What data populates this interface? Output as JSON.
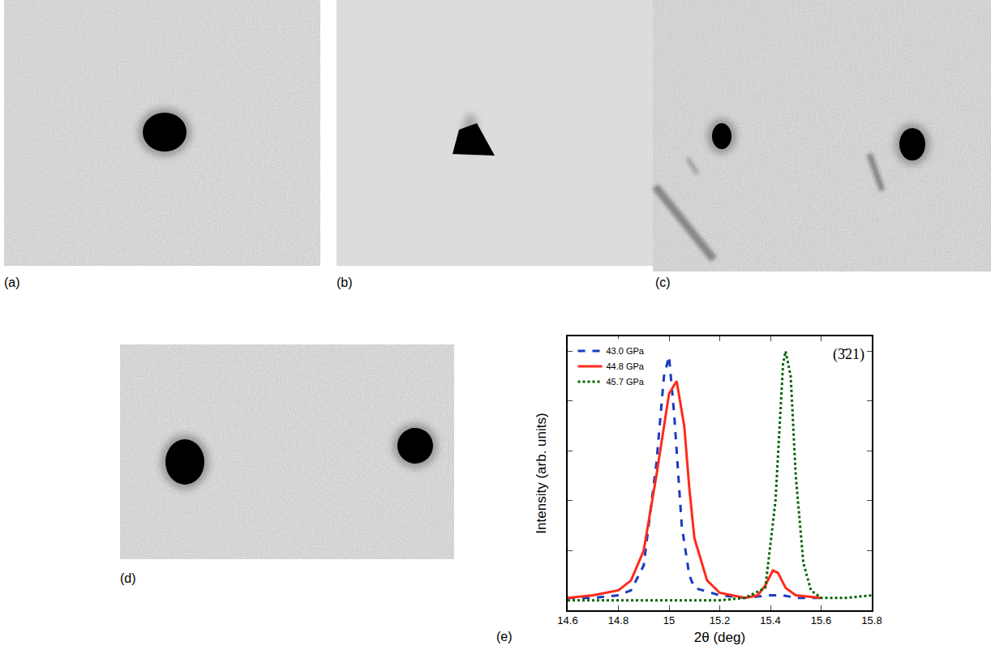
{
  "images": [
    {
      "label": "(a)"
    },
    {
      "label": "(b)"
    },
    {
      "label": "(c)"
    },
    {
      "label": "(d)"
    }
  ],
  "chart_data": {
    "type": "line",
    "panel_label": "(e)",
    "x_label": "2θ (deg)",
    "y_label": "Intensity (arb. units)",
    "annotations": [
      {
        "text": "(3̄21)"
      }
    ],
    "xlim": [
      14.6,
      15.8
    ],
    "xticks": [
      14.6,
      14.8,
      15,
      15.2,
      15.4,
      15.6,
      15.8
    ],
    "ylim": [
      -0.04,
      1.06
    ],
    "yticks": [
      0.2,
      0.4,
      0.6,
      0.8,
      1.0
    ],
    "tick_labels": "x",
    "grid": false,
    "legend": "top-left",
    "series": [
      {
        "name": "43.0 GPa",
        "color": "#1a3bbf",
        "line_style": "dashed",
        "x": [
          14.6,
          14.7,
          14.8,
          14.85,
          14.9,
          14.95,
          14.98,
          15.0,
          15.02,
          15.05,
          15.08,
          15.1,
          15.2,
          15.3,
          15.4,
          15.45,
          15.5,
          15.6
        ],
        "values": [
          0.01,
          0.01,
          0.02,
          0.04,
          0.14,
          0.55,
          0.9,
          0.98,
          0.75,
          0.3,
          0.1,
          0.05,
          0.02,
          0.01,
          0.02,
          0.02,
          0.01,
          0.01
        ]
      },
      {
        "name": "44.8 GPa",
        "color": "#ff2a1a",
        "line_style": "solid",
        "x": [
          14.6,
          14.7,
          14.8,
          14.85,
          14.9,
          14.95,
          15.0,
          15.03,
          15.06,
          15.08,
          15.1,
          15.15,
          15.2,
          15.3,
          15.35,
          15.38,
          15.41,
          15.43,
          15.46,
          15.5,
          15.6
        ],
        "values": [
          0.01,
          0.02,
          0.04,
          0.08,
          0.2,
          0.5,
          0.83,
          0.88,
          0.7,
          0.45,
          0.25,
          0.08,
          0.03,
          0.01,
          0.02,
          0.06,
          0.12,
          0.11,
          0.05,
          0.02,
          0.01
        ]
      },
      {
        "name": "45.7 GPa",
        "color": "#006400",
        "line_style": "dotted",
        "x": [
          14.6,
          14.8,
          15.0,
          15.2,
          15.3,
          15.38,
          15.42,
          15.45,
          15.46,
          15.48,
          15.5,
          15.53,
          15.56,
          15.6,
          15.7,
          15.8
        ],
        "values": [
          0.0,
          0.0,
          0.0,
          0.0,
          0.01,
          0.05,
          0.4,
          0.95,
          1.0,
          0.9,
          0.5,
          0.15,
          0.04,
          0.01,
          0.01,
          0.02
        ]
      }
    ]
  }
}
